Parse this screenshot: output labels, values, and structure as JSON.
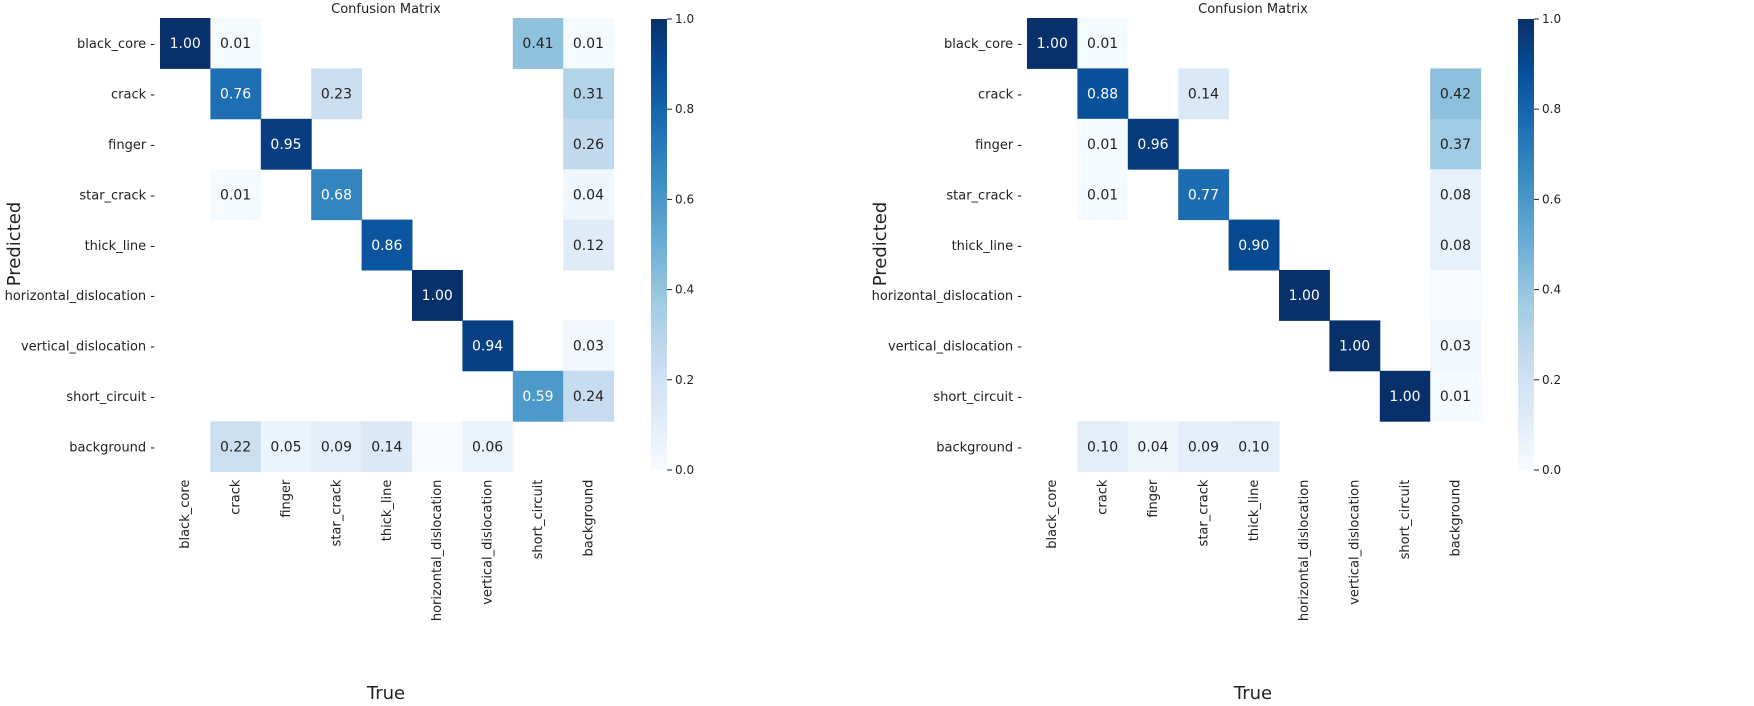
{
  "colors": {
    "max": "#08306b",
    "text_dark": "#222222",
    "text_light": "#ffffff"
  },
  "chart_data": [
    {
      "type": "heatmap",
      "title": "Confusion Matrix",
      "xlabel": "True",
      "ylabel": "Predicted",
      "vmin": 0.0,
      "vmax": 1.0,
      "colorbar_ticks": [
        "0.0",
        "0.2",
        "0.4",
        "0.6",
        "0.8",
        "1.0"
      ],
      "row_labels": [
        "black_core",
        "crack",
        "finger",
        "star_crack",
        "thick_line",
        "horizontal_dislocation",
        "vertical_dislocation",
        "short_circuit",
        "background"
      ],
      "col_labels": [
        "black_core",
        "crack",
        "finger",
        "star_crack",
        "thick_line",
        "horizontal_dislocation",
        "vertical_dislocation",
        "short_circuit",
        "background"
      ],
      "values": [
        [
          1.0,
          0.01,
          null,
          null,
          null,
          null,
          null,
          0.41,
          0.01
        ],
        [
          null,
          0.76,
          null,
          0.23,
          null,
          null,
          null,
          null,
          0.31
        ],
        [
          null,
          null,
          0.95,
          null,
          null,
          null,
          null,
          null,
          0.26
        ],
        [
          null,
          0.01,
          null,
          0.68,
          null,
          null,
          null,
          null,
          0.04
        ],
        [
          null,
          null,
          null,
          null,
          0.86,
          null,
          null,
          null,
          0.12
        ],
        [
          null,
          null,
          null,
          null,
          null,
          1.0,
          null,
          null,
          null
        ],
        [
          null,
          null,
          null,
          null,
          null,
          null,
          0.94,
          null,
          0.03
        ],
        [
          null,
          null,
          null,
          null,
          null,
          null,
          null,
          0.59,
          0.24
        ],
        [
          null,
          0.22,
          0.05,
          0.09,
          0.14,
          0.002,
          0.06,
          null,
          null
        ]
      ]
    },
    {
      "type": "heatmap",
      "title": "Confusion Matrix",
      "xlabel": "True",
      "ylabel": "Predicted",
      "vmin": 0.0,
      "vmax": 1.0,
      "colorbar_ticks": [
        "0.0",
        "0.2",
        "0.4",
        "0.6",
        "0.8",
        "1.0"
      ],
      "row_labels": [
        "black_core",
        "crack",
        "finger",
        "star_crack",
        "thick_line",
        "horizontal_dislocation",
        "vertical_dislocation",
        "short_circuit",
        "background"
      ],
      "col_labels": [
        "black_core",
        "crack",
        "finger",
        "star_crack",
        "thick_line",
        "horizontal_dislocation",
        "vertical_dislocation",
        "short_circuit",
        "background"
      ],
      "values": [
        [
          1.0,
          0.01,
          null,
          null,
          null,
          null,
          null,
          null,
          null
        ],
        [
          null,
          0.88,
          null,
          0.14,
          null,
          null,
          null,
          null,
          0.42
        ],
        [
          null,
          0.01,
          0.96,
          null,
          null,
          null,
          null,
          null,
          0.37
        ],
        [
          null,
          0.01,
          null,
          0.77,
          null,
          null,
          null,
          null,
          0.08
        ],
        [
          null,
          null,
          null,
          null,
          0.9,
          null,
          null,
          null,
          0.08
        ],
        [
          null,
          null,
          null,
          null,
          null,
          1.0,
          null,
          null,
          0.002
        ],
        [
          null,
          null,
          null,
          null,
          null,
          null,
          1.0,
          null,
          0.03
        ],
        [
          null,
          null,
          null,
          null,
          null,
          null,
          null,
          1.0,
          0.01
        ],
        [
          null,
          0.1,
          0.04,
          0.09,
          0.1,
          null,
          null,
          null,
          null
        ]
      ]
    }
  ]
}
